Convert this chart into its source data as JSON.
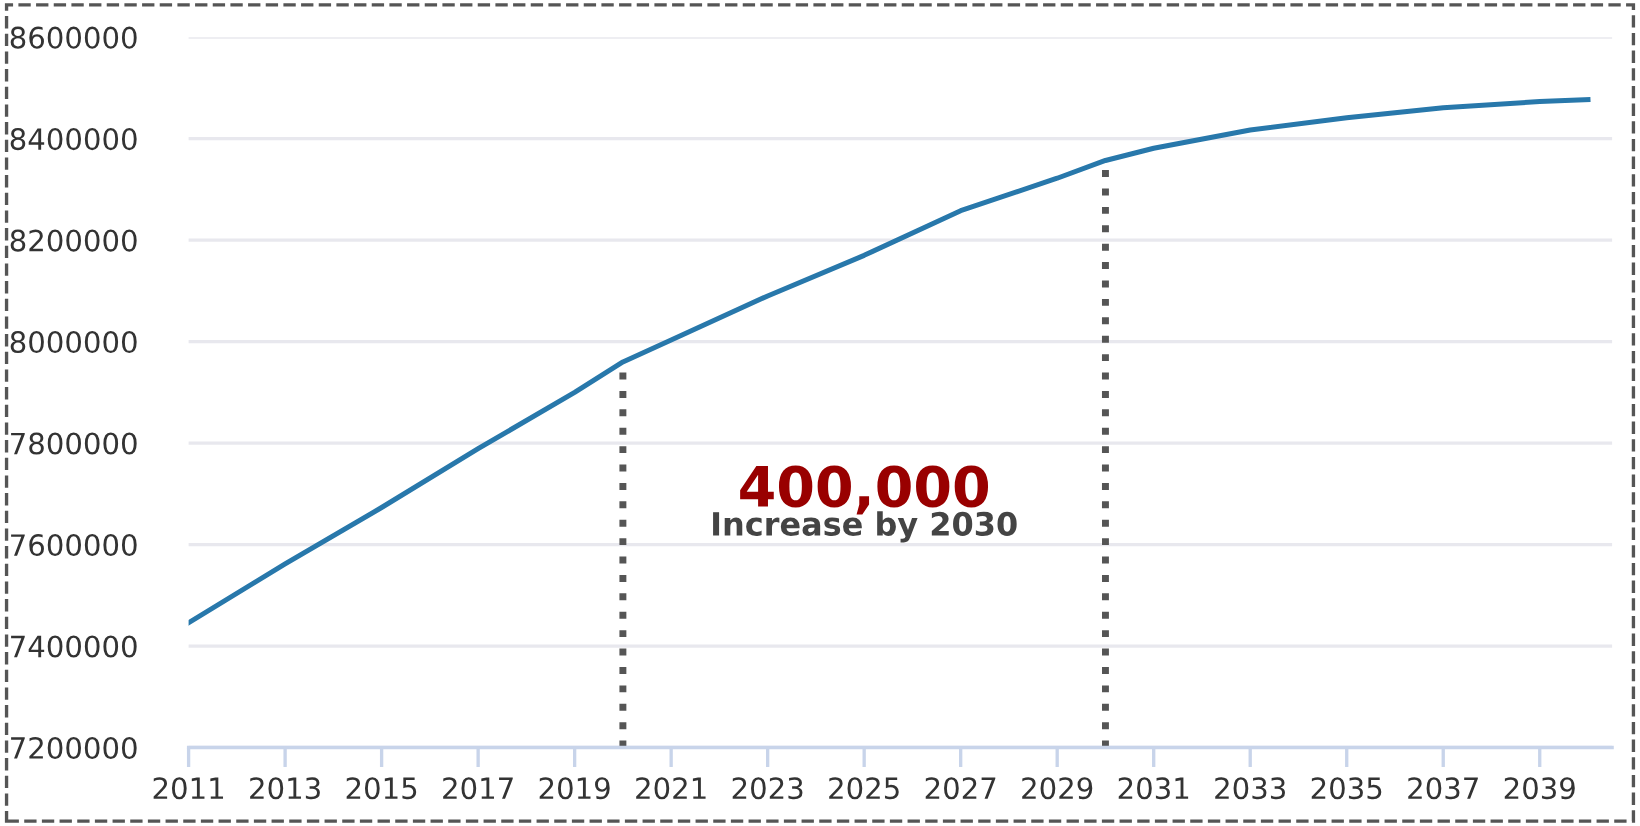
{
  "chart_data": {
    "type": "line",
    "x": [
      2011,
      2013,
      2015,
      2017,
      2019,
      2020,
      2021,
      2023,
      2025,
      2027,
      2029,
      2030,
      2031,
      2033,
      2035,
      2037,
      2039,
      2040
    ],
    "series": [
      {
        "color": "#2878ab",
        "values": [
          7446000,
          7562000,
          7673000,
          7789000,
          7900000,
          7960000,
          8003000,
          8090000,
          8170000,
          8258000,
          8322000,
          8357000,
          8381000,
          8417000,
          8441000,
          8461000,
          8473000,
          8477000
        ]
      }
    ],
    "xlim": [
      2011,
      2040.5
    ],
    "xticks": [
      2011,
      2013,
      2015,
      2017,
      2019,
      2021,
      2023,
      2025,
      2027,
      2029,
      2031,
      2033,
      2035,
      2037,
      2039
    ],
    "ylim": [
      7200000,
      8600000
    ],
    "yticks": [
      7200000,
      7400000,
      7600000,
      7800000,
      8000000,
      8200000,
      8400000,
      8600000
    ],
    "grid": "y",
    "legend": false,
    "marker": "none",
    "line_style": "solid",
    "ref_lines": [
      {
        "axis": "x",
        "value": 2020,
        "color": "#555555",
        "line_style": "dotted"
      },
      {
        "axis": "x",
        "value": 2030,
        "color": "#555555",
        "line_style": "dotted"
      }
    ],
    "annotations": [
      "400,000",
      "Increase by 2030"
    ]
  }
}
